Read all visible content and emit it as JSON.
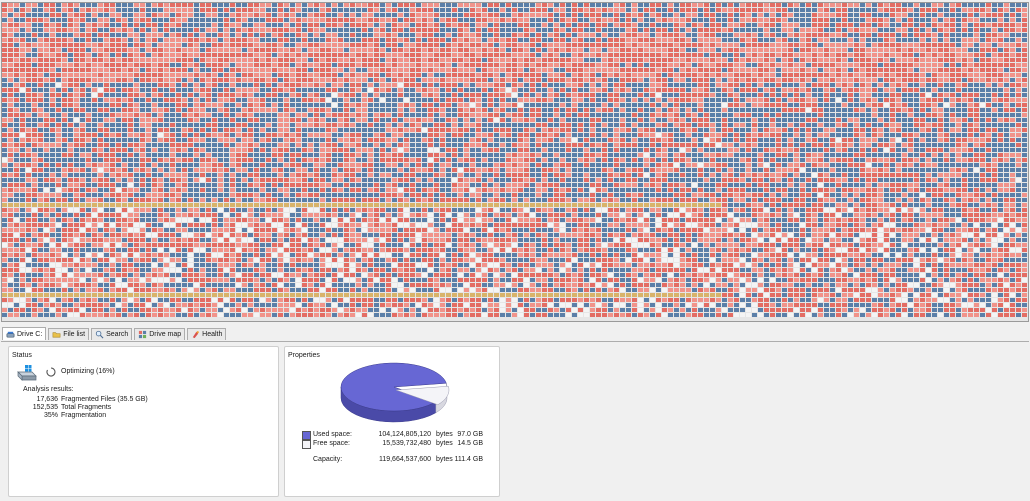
{
  "tabs": [
    {
      "label": "Drive C:",
      "icon": "drive-icon",
      "active": true
    },
    {
      "label": "File list",
      "icon": "folder-icon",
      "active": false
    },
    {
      "label": "Search",
      "icon": "magnifier-icon",
      "active": false
    },
    {
      "label": "Drive map",
      "icon": "drive-map-icon",
      "active": false
    },
    {
      "label": "Health",
      "icon": "health-icon",
      "active": false
    }
  ],
  "status": {
    "title": "Status",
    "optimizing_text": "Optimizing (16%)",
    "analysis_label": "Analysis results:",
    "results": [
      {
        "value": "17,636",
        "label": "Fragmented Files (35.5 GB)"
      },
      {
        "value": "152,535",
        "label": "Total Fragments"
      },
      {
        "value": "35%",
        "label": "Fragmentation"
      }
    ]
  },
  "properties": {
    "title": "Properties",
    "used_label": "Used space:",
    "used_bytes": "104,124,805,120",
    "used_unit": "bytes",
    "used_gb": "97.0 GB",
    "free_label": "Free space:",
    "free_bytes": "15,539,732,480",
    "free_unit": "bytes",
    "free_gb": "14.5 GB",
    "capacity_label": "Capacity:",
    "capacity_bytes": "119,664,537,600",
    "capacity_unit": "bytes",
    "capacity_gb": "111.4 GB",
    "used_fraction": 0.87
  },
  "colors": {
    "map_blue": "#5b7fa8",
    "map_red": "#e36d64",
    "map_salmon": "#f1938a",
    "map_gold": "#d8b36a",
    "map_white": "#f4f4f4",
    "pie_used": "#6767d4",
    "pie_free": "#f4f4f8"
  }
}
